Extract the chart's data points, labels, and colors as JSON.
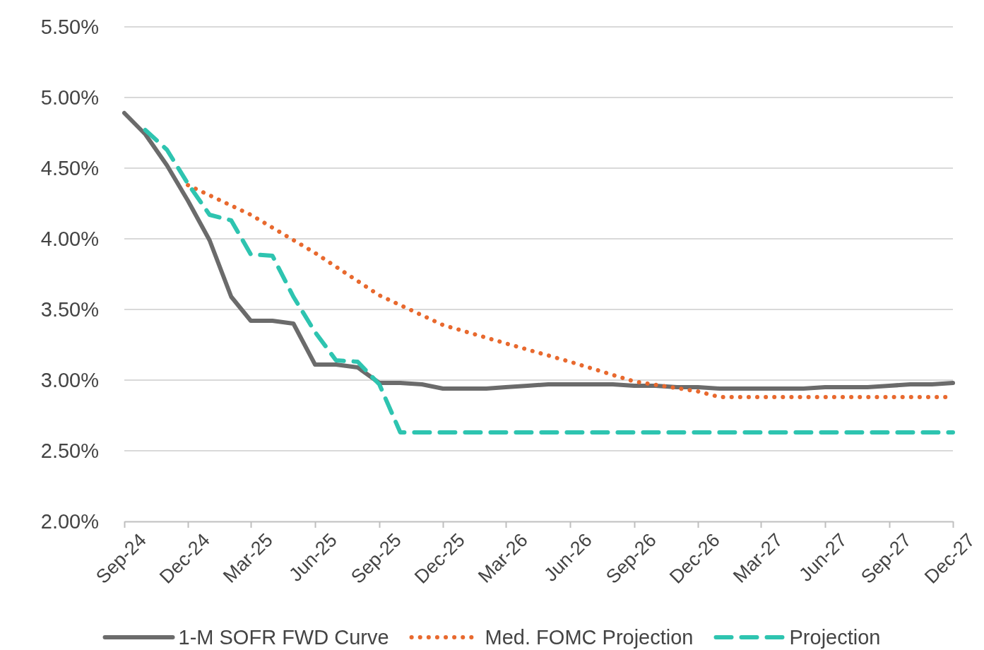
{
  "chart_data": {
    "type": "line",
    "x": [
      "2024-09",
      "2024-10",
      "2024-11",
      "2024-12",
      "2025-01",
      "2025-02",
      "2025-03",
      "2025-04",
      "2025-05",
      "2025-06",
      "2025-07",
      "2025-08",
      "2025-09",
      "2025-10",
      "2025-11",
      "2025-12",
      "2026-01",
      "2026-02",
      "2026-03",
      "2026-04",
      "2026-05",
      "2026-06",
      "2026-07",
      "2026-08",
      "2026-09",
      "2026-10",
      "2026-11",
      "2026-12",
      "2027-01",
      "2027-02",
      "2027-03",
      "2027-04",
      "2027-05",
      "2027-06",
      "2027-07",
      "2027-08",
      "2027-09",
      "2027-10",
      "2027-11",
      "2027-12"
    ],
    "series": [
      {
        "name": "1-M SOFR FWD Curve",
        "color": "#6b6b6b",
        "line_style": "solid",
        "values": [
          4.89,
          4.74,
          4.52,
          4.27,
          3.99,
          3.59,
          3.42,
          3.42,
          3.4,
          3.11,
          3.11,
          3.09,
          2.98,
          2.98,
          2.97,
          2.94,
          2.94,
          2.94,
          2.95,
          2.96,
          2.97,
          2.97,
          2.97,
          2.97,
          2.96,
          2.96,
          2.95,
          2.95,
          2.94,
          2.94,
          2.94,
          2.94,
          2.94,
          2.95,
          2.95,
          2.95,
          2.96,
          2.97,
          2.97,
          2.98
        ]
      },
      {
        "name": "Med. FOMC Projection",
        "color": "#e8692e",
        "line_style": "dotted",
        "x": [
          "2024-12",
          "2025-03",
          "2025-06",
          "2025-09",
          "2025-12",
          "2026-03",
          "2026-06",
          "2026-09",
          "2026-12",
          "2027-01",
          "2027-12"
        ],
        "values": [
          4.38,
          4.17,
          3.9,
          3.6,
          3.39,
          3.26,
          3.13,
          2.99,
          2.92,
          2.88,
          2.88
        ]
      },
      {
        "name": "Projection",
        "color": "#2ec4b0",
        "line_style": "dashed",
        "x": [
          "2024-10",
          "2024-11",
          "2024-12",
          "2025-01",
          "2025-02",
          "2025-03",
          "2025-04",
          "2025-05",
          "2025-06",
          "2025-07",
          "2025-08",
          "2025-09",
          "2025-10",
          "2027-12"
        ],
        "values": [
          4.77,
          4.63,
          4.39,
          4.17,
          4.13,
          3.89,
          3.88,
          3.59,
          3.34,
          3.14,
          3.13,
          2.97,
          2.63,
          2.63
        ]
      }
    ],
    "xlim": [
      "2024-09",
      "2027-12"
    ],
    "xticks": [
      {
        "value": "2024-09",
        "label": "Sep-24"
      },
      {
        "value": "2024-12",
        "label": "Dec-24"
      },
      {
        "value": "2025-03",
        "label": "Mar-25"
      },
      {
        "value": "2025-06",
        "label": "Jun-25"
      },
      {
        "value": "2025-09",
        "label": "Sep-25"
      },
      {
        "value": "2025-12",
        "label": "Dec-25"
      },
      {
        "value": "2026-03",
        "label": "Mar-26"
      },
      {
        "value": "2026-06",
        "label": "Jun-26"
      },
      {
        "value": "2026-09",
        "label": "Sep-26"
      },
      {
        "value": "2026-12",
        "label": "Dec-26"
      },
      {
        "value": "2027-03",
        "label": "Mar-27"
      },
      {
        "value": "2027-06",
        "label": "Jun-27"
      },
      {
        "value": "2027-09",
        "label": "Sep-27"
      },
      {
        "value": "2027-12",
        "label": "Dec-27"
      }
    ],
    "ylim": [
      2.0,
      5.5
    ],
    "yticks": [
      {
        "value": 2.0,
        "label": "2.00%"
      },
      {
        "value": 2.5,
        "label": "2.50%"
      },
      {
        "value": 3.0,
        "label": "3.00%"
      },
      {
        "value": 3.5,
        "label": "3.50%"
      },
      {
        "value": 4.0,
        "label": "4.00%"
      },
      {
        "value": 4.5,
        "label": "4.50%"
      },
      {
        "value": 5.0,
        "label": "5.00%"
      },
      {
        "value": 5.5,
        "label": "5.50%"
      }
    ],
    "grid": "y",
    "legend": "bottom",
    "marker": "none"
  }
}
